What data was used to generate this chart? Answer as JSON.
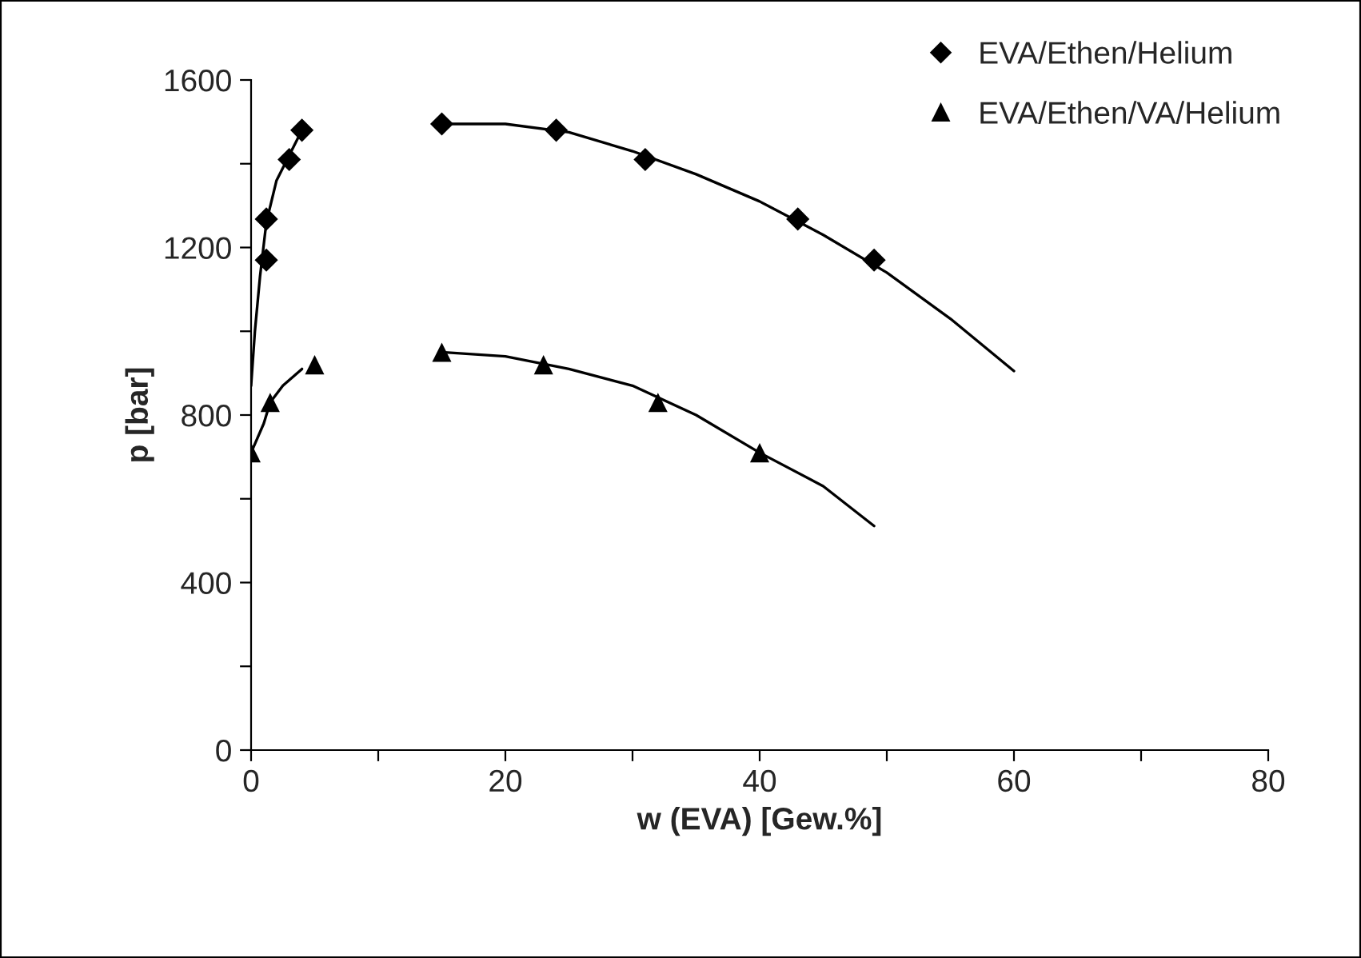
{
  "chart_data": {
    "type": "scatter",
    "xlabel": "w (EVA) [Gew.%]",
    "ylabel": "p [bar]",
    "xlim": [
      0,
      80
    ],
    "xticks": [
      0,
      {
        "value": 10,
        "label": null
      },
      20,
      {
        "value": 30,
        "label": null
      },
      40,
      {
        "value": 50,
        "label": null
      },
      60,
      {
        "value": 70,
        "label": null
      },
      80
    ],
    "ylim": [
      0,
      1600
    ],
    "yticks": [
      0,
      {
        "value": 200,
        "label": null
      },
      400,
      {
        "value": 600,
        "label": null
      },
      800,
      {
        "value": 1000,
        "label": null
      },
      1200,
      {
        "value": 1400,
        "label": null
      },
      1600
    ],
    "grid": false,
    "legend": "top right",
    "series": [
      {
        "name": "EVA/Ethen/Helium",
        "marker": "diamond",
        "color": "#000000",
        "x": [
          1.2,
          1.2,
          3,
          4,
          15,
          24,
          31,
          43,
          49
        ],
        "values": [
          1170,
          1268,
          1410,
          1480,
          1495,
          1480,
          1410,
          1268,
          1170
        ]
      },
      {
        "name": "EVA/Ethen/VA/Helium",
        "marker": "triangle",
        "color": "#000000",
        "x": [
          0,
          1.5,
          5,
          15,
          23,
          32,
          40
        ],
        "values": [
          710,
          830,
          920,
          950,
          920,
          830,
          710
        ]
      },
      {
        "type": "line",
        "marker": "none",
        "color": "#000000",
        "x": [
          0,
          0.3,
          0.7,
          1.2,
          2,
          3,
          4
        ],
        "values": [
          870,
          1000,
          1130,
          1260,
          1360,
          1420,
          1480
        ]
      },
      {
        "type": "line",
        "marker": "none",
        "color": "#000000",
        "x": [
          15,
          20,
          25,
          30,
          35,
          40,
          45,
          50,
          55,
          60
        ],
        "values": [
          1495,
          1495,
          1475,
          1430,
          1375,
          1310,
          1230,
          1140,
          1030,
          905
        ]
      },
      {
        "type": "line",
        "marker": "none",
        "color": "#000000",
        "x": [
          0,
          1,
          1.5,
          2.5,
          4
        ],
        "values": [
          710,
          780,
          830,
          870,
          910
        ]
      },
      {
        "type": "line",
        "marker": "none",
        "color": "#000000",
        "x": [
          15,
          20,
          25,
          30,
          35,
          40,
          45,
          49
        ],
        "values": [
          950,
          940,
          910,
          870,
          800,
          710,
          630,
          535
        ]
      }
    ]
  }
}
